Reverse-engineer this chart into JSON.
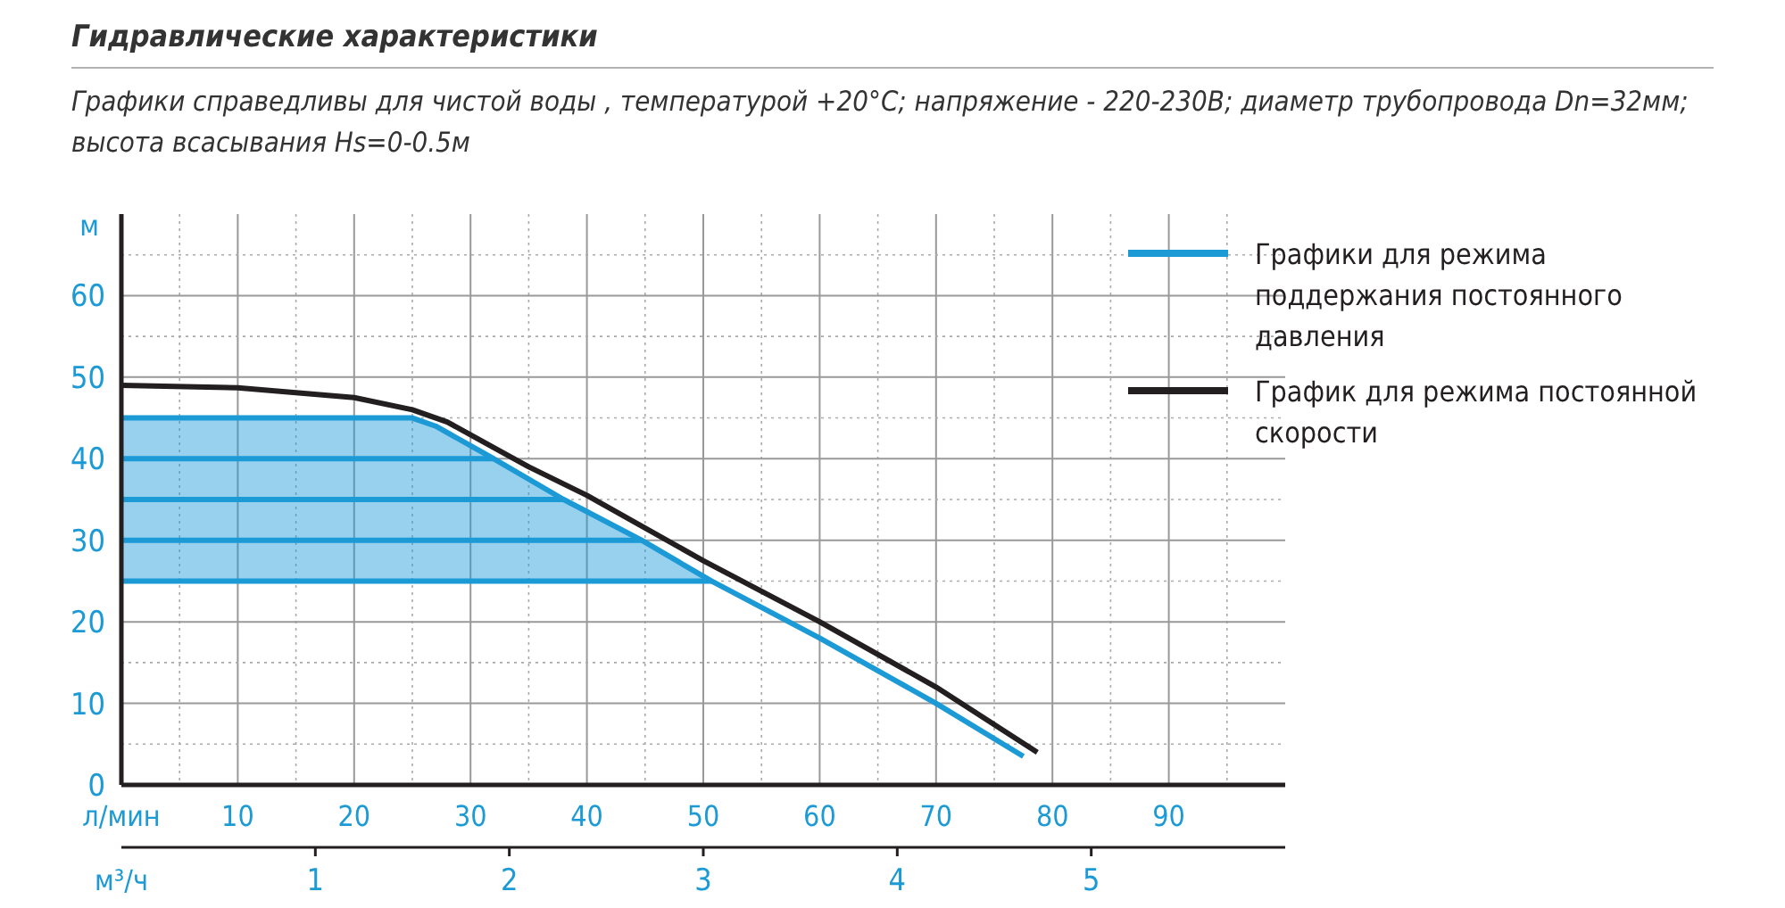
{
  "chart_data": {
    "type": "line",
    "title": "Гидравлические характеристики",
    "subtitle": "Графики справедливы для чистой воды , температурой  +20°C; напряжение  - 220-230В; диаметр  трубопровода Dn=32мм; высота всасывания Hs=0-0.5м",
    "xlabel": "л/мин",
    "ylabel": "м",
    "x2label": "м³/ч",
    "xlim": [
      0,
      100
    ],
    "xticks": [
      {
        "value": 5,
        "label": null
      },
      10,
      {
        "value": 15,
        "label": null
      },
      20,
      {
        "value": 25,
        "label": null
      },
      30,
      {
        "value": 35,
        "label": null
      },
      40,
      {
        "value": 45,
        "label": null
      },
      50,
      {
        "value": 55,
        "label": null
      },
      60,
      {
        "value": 65,
        "label": null
      },
      70,
      {
        "value": 75,
        "label": null
      },
      80,
      {
        "value": 85,
        "label": null
      },
      90,
      {
        "value": 95,
        "label": null
      }
    ],
    "ylim": [
      0,
      70
    ],
    "yticks": [
      0,
      {
        "value": 5,
        "label": null
      },
      10,
      {
        "value": 15,
        "label": null
      },
      20,
      {
        "value": 25,
        "label": null
      },
      30,
      {
        "value": 35,
        "label": null
      },
      40,
      {
        "value": 45,
        "label": null
      },
      50,
      {
        "value": 55,
        "label": null
      },
      60,
      {
        "value": 65,
        "label": null
      }
    ],
    "x2lim": [
      0,
      6
    ],
    "x2ticks": [
      1,
      2,
      3,
      4,
      5
    ],
    "grid": true,
    "legend": "right",
    "marker": "none",
    "line_style": "solid",
    "series": [
      {
        "name": "Графики для режима поддержания постоянного давления",
        "color": "#1b9ad6",
        "x": [
          0,
          25,
          27,
          32,
          38,
          44.7,
          50.7,
          60,
          70,
          77.5
        ],
        "values": [
          45,
          45,
          44,
          40,
          35,
          30,
          25,
          18,
          10,
          3.5
        ],
        "lower": [
          25,
          25,
          25,
          25,
          25,
          25,
          25,
          null,
          null,
          null
        ],
        "upper": [
          45,
          45,
          44,
          40,
          35,
          30,
          25,
          null,
          null,
          null
        ]
      },
      {
        "color": "#1b9ad6",
        "x": [
          0,
          32
        ],
        "values": [
          40,
          40
        ]
      },
      {
        "color": "#1b9ad6",
        "x": [
          0,
          38
        ],
        "values": [
          35,
          35
        ]
      },
      {
        "color": "#1b9ad6",
        "x": [
          0,
          44.7
        ],
        "values": [
          30,
          30
        ]
      },
      {
        "color": "#1b9ad6",
        "x": [
          0,
          50.7
        ],
        "values": [
          25,
          25
        ]
      },
      {
        "name": "График для режима постоянной скорости",
        "color": "#231f20",
        "x": [
          0,
          10,
          20,
          25,
          28,
          35,
          40,
          50,
          60,
          70,
          78.7
        ],
        "values": [
          49,
          48.7,
          47.5,
          46,
          44.5,
          39,
          35.5,
          27.5,
          20,
          12,
          4
        ]
      }
    ]
  }
}
